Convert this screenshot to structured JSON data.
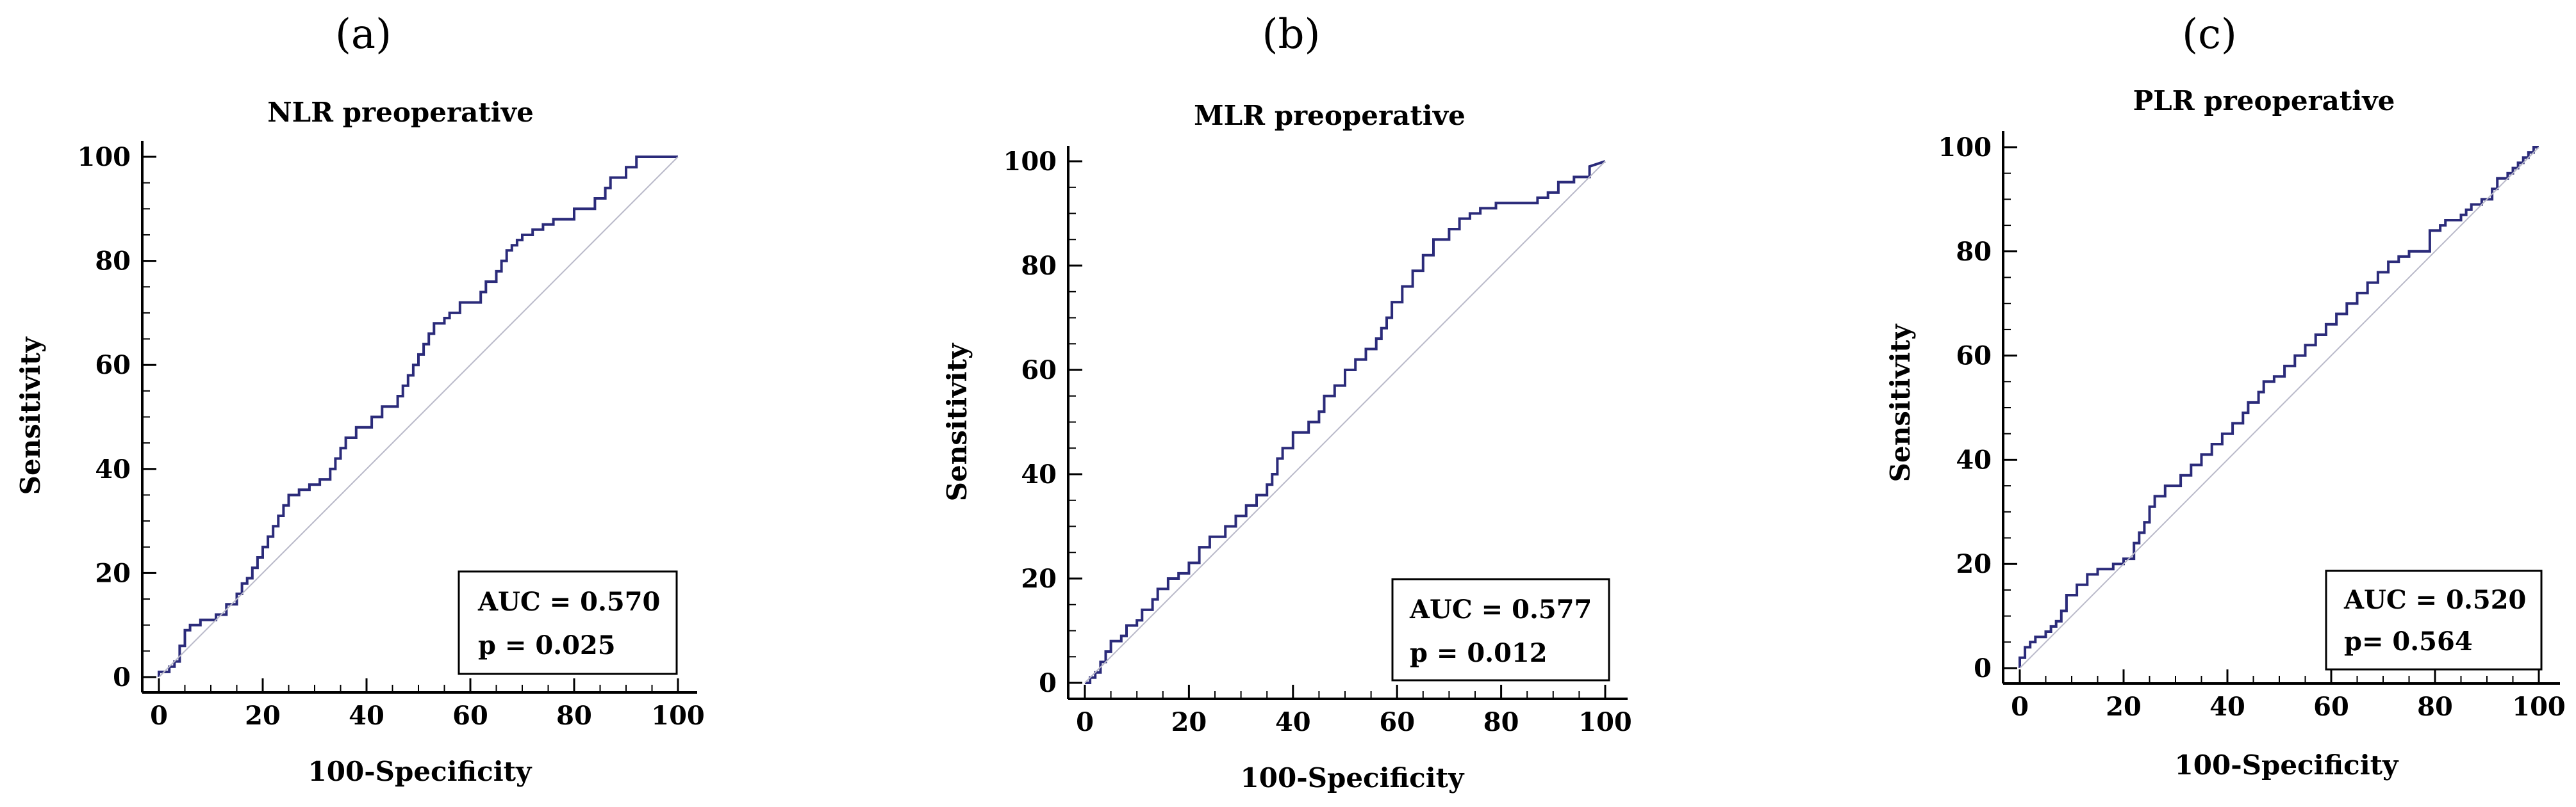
{
  "figure": {
    "panels": [
      {
        "letter": "(a)",
        "auc_text": "AUC = 0.570",
        "p_text": "p = 0.025"
      },
      {
        "letter": "(b)",
        "auc_text": "AUC = 0.577",
        "p_text": "p = 0.012"
      },
      {
        "letter": "(c)",
        "auc_text": "AUC = 0.520",
        "p_text": "p= 0.564"
      }
    ]
  },
  "colors": {
    "roc": "#2b2b7a",
    "diagonal": "#b9b9c9",
    "axis": "#000000",
    "box": "#000000"
  },
  "chart_data": [
    {
      "type": "line",
      "title": "NLR preoperative",
      "xlabel": "100-Specificity",
      "ylabel": "Sensitivity",
      "xlim": [
        0,
        100
      ],
      "ylim": [
        0,
        100
      ],
      "xticks": [
        "0",
        "20",
        "40",
        "60",
        "80",
        "100"
      ],
      "yticks": [
        "0",
        "20",
        "40",
        "60",
        "80",
        "100"
      ],
      "auc": 0.57,
      "p": 0.025,
      "series": [
        {
          "name": "ROC",
          "x": [
            0,
            0,
            2,
            2,
            3,
            3,
            4,
            4,
            5,
            5,
            6,
            6,
            8,
            8,
            11,
            11,
            13,
            13,
            15,
            15,
            16,
            16,
            17,
            17,
            18,
            18,
            19,
            19,
            20,
            20,
            21,
            21,
            22,
            22,
            23,
            23,
            24,
            24,
            25,
            25,
            27,
            27,
            29,
            29,
            31,
            31,
            33,
            33,
            34,
            34,
            35,
            35,
            36,
            36,
            38,
            38,
            41,
            41,
            43,
            43,
            46,
            46,
            47,
            47,
            48,
            48,
            49,
            49,
            50,
            50,
            51,
            51,
            52,
            52,
            53,
            53,
            55,
            55,
            56,
            56,
            58,
            58,
            62,
            62,
            63,
            63,
            65,
            65,
            66,
            66,
            67,
            67,
            68,
            68,
            69,
            69,
            70,
            70,
            72,
            72,
            74,
            74,
            76,
            76,
            80,
            80,
            84,
            84,
            86,
            86,
            87,
            87,
            90,
            90,
            92,
            92,
            100
          ],
          "y": [
            0,
            1,
            1,
            2,
            2,
            3,
            3,
            6,
            6,
            9,
            9,
            10,
            10,
            11,
            11,
            12,
            12,
            14,
            14,
            16,
            16,
            18,
            18,
            19,
            19,
            21,
            21,
            23,
            23,
            25,
            25,
            27,
            27,
            29,
            29,
            31,
            31,
            33,
            33,
            35,
            35,
            36,
            36,
            37,
            37,
            38,
            38,
            40,
            40,
            42,
            42,
            44,
            44,
            46,
            46,
            48,
            48,
            50,
            50,
            52,
            52,
            54,
            54,
            56,
            56,
            58,
            58,
            60,
            60,
            62,
            62,
            64,
            64,
            66,
            66,
            68,
            68,
            69,
            69,
            70,
            70,
            72,
            72,
            74,
            74,
            76,
            76,
            78,
            78,
            80,
            80,
            82,
            82,
            83,
            83,
            84,
            84,
            85,
            85,
            86,
            86,
            87,
            87,
            88,
            88,
            90,
            90,
            92,
            92,
            94,
            94,
            96,
            96,
            98,
            98,
            100,
            100
          ]
        },
        {
          "name": "Reference",
          "x": [
            0,
            100
          ],
          "y": [
            0,
            100
          ]
        }
      ]
    },
    {
      "type": "line",
      "title": "MLR preoperative",
      "xlabel": "100-Specificity",
      "ylabel": "Sensitivity",
      "xlim": [
        0,
        100
      ],
      "ylim": [
        0,
        100
      ],
      "xticks": [
        "0",
        "20",
        "40",
        "60",
        "80",
        "100"
      ],
      "yticks": [
        "0",
        "20",
        "40",
        "60",
        "80",
        "100"
      ],
      "auc": 0.577,
      "p": 0.012,
      "series": [
        {
          "name": "ROC",
          "x": [
            0,
            1,
            1,
            2,
            2,
            3,
            3,
            4,
            4,
            5,
            5,
            7,
            7,
            8,
            8,
            10,
            10,
            11,
            11,
            13,
            13,
            14,
            14,
            16,
            16,
            18,
            18,
            20,
            20,
            22,
            22,
            24,
            24,
            27,
            27,
            29,
            29,
            31,
            31,
            33,
            33,
            35,
            35,
            36,
            36,
            37,
            37,
            38,
            38,
            40,
            40,
            43,
            43,
            45,
            45,
            46,
            46,
            48,
            48,
            50,
            50,
            52,
            52,
            54,
            54,
            56,
            56,
            57,
            57,
            58,
            58,
            59,
            59,
            61,
            61,
            63,
            63,
            65,
            65,
            67,
            67,
            70,
            70,
            72,
            72,
            74,
            74,
            76,
            76,
            79,
            79,
            87,
            87,
            89,
            89,
            91,
            91,
            94,
            94,
            97,
            97,
            100
          ],
          "y": [
            0,
            0,
            1,
            1,
            2,
            2,
            4,
            4,
            6,
            6,
            8,
            8,
            9,
            9,
            11,
            11,
            12,
            12,
            14,
            14,
            16,
            16,
            18,
            18,
            20,
            20,
            21,
            21,
            23,
            23,
            26,
            26,
            28,
            28,
            30,
            30,
            32,
            32,
            34,
            34,
            36,
            36,
            38,
            38,
            40,
            40,
            43,
            43,
            45,
            45,
            48,
            48,
            50,
            50,
            52,
            52,
            55,
            55,
            57,
            57,
            60,
            60,
            62,
            62,
            64,
            64,
            66,
            66,
            68,
            68,
            70,
            70,
            73,
            73,
            76,
            76,
            79,
            79,
            82,
            82,
            85,
            85,
            87,
            87,
            89,
            89,
            90,
            90,
            91,
            91,
            92,
            92,
            93,
            93,
            94,
            94,
            96,
            96,
            97,
            97,
            99,
            100
          ]
        },
        {
          "name": "Reference",
          "x": [
            0,
            100
          ],
          "y": [
            0,
            100
          ]
        }
      ]
    },
    {
      "type": "line",
      "title": "PLR preoperative",
      "xlabel": "100-Specificity",
      "ylabel": "Sensitivity",
      "xlim": [
        0,
        100
      ],
      "ylim": [
        0,
        100
      ],
      "xticks": [
        "0",
        "20",
        "40",
        "60",
        "80",
        "100"
      ],
      "yticks": [
        "0",
        "20",
        "40",
        "60",
        "80",
        "100"
      ],
      "auc": 0.52,
      "p": 0.564,
      "series": [
        {
          "name": "ROC",
          "x": [
            0,
            0,
            1,
            1,
            2,
            2,
            3,
            3,
            5,
            5,
            6,
            6,
            7,
            7,
            8,
            8,
            9,
            9,
            11,
            11,
            13,
            13,
            15,
            15,
            18,
            18,
            20,
            20,
            22,
            22,
            23,
            23,
            24,
            24,
            25,
            25,
            26,
            26,
            28,
            28,
            31,
            31,
            33,
            33,
            35,
            35,
            37,
            37,
            39,
            39,
            41,
            41,
            43,
            43,
            44,
            44,
            46,
            46,
            47,
            47,
            49,
            49,
            51,
            51,
            53,
            53,
            55,
            55,
            57,
            57,
            59,
            59,
            61,
            61,
            63,
            63,
            65,
            65,
            67,
            67,
            69,
            69,
            71,
            71,
            73,
            73,
            75,
            75,
            79,
            79,
            81,
            81,
            82,
            82,
            85,
            85,
            86,
            86,
            87,
            87,
            89,
            89,
            91,
            91,
            92,
            92,
            94,
            94,
            95,
            95,
            96,
            96,
            97,
            97,
            98,
            98,
            99,
            99,
            100
          ],
          "y": [
            0,
            2,
            2,
            4,
            4,
            5,
            5,
            6,
            6,
            7,
            7,
            8,
            8,
            9,
            9,
            11,
            11,
            14,
            14,
            16,
            16,
            18,
            18,
            19,
            19,
            20,
            20,
            21,
            21,
            24,
            24,
            26,
            26,
            28,
            28,
            31,
            31,
            33,
            33,
            35,
            35,
            37,
            37,
            39,
            39,
            41,
            41,
            43,
            43,
            45,
            45,
            47,
            47,
            49,
            49,
            51,
            51,
            53,
            53,
            55,
            55,
            56,
            56,
            58,
            58,
            60,
            60,
            62,
            62,
            64,
            64,
            66,
            66,
            68,
            68,
            70,
            70,
            72,
            72,
            74,
            74,
            76,
            76,
            78,
            78,
            79,
            79,
            80,
            80,
            84,
            84,
            85,
            85,
            86,
            86,
            87,
            87,
            88,
            88,
            89,
            89,
            90,
            90,
            92,
            92,
            94,
            94,
            95,
            95,
            96,
            96,
            97,
            97,
            98,
            98,
            99,
            99,
            100,
            100
          ]
        },
        {
          "name": "Reference",
          "x": [
            0,
            100
          ],
          "y": [
            0,
            100
          ]
        }
      ]
    }
  ]
}
